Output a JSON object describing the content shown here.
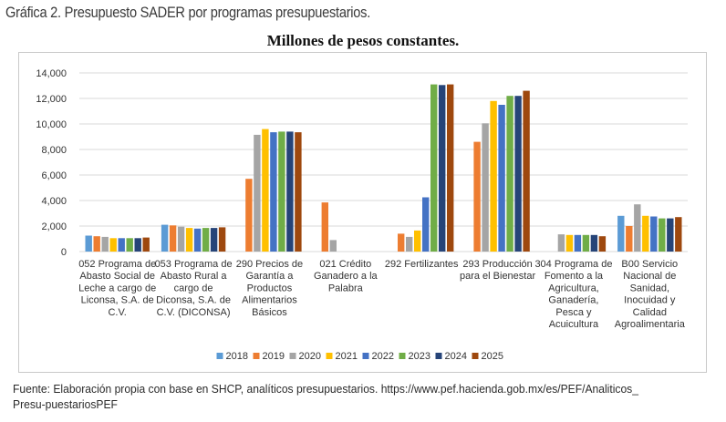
{
  "caption": "Gráfica 2. Presupuesto SADER por programas presupuestarios.",
  "source": "Fuente: Elaboración propia con base en SHCP, analíticos presupuestarios. https://www.pef.hacienda.gob.mx/es/PEF/Analiticos_ Presu-puestariosPEF",
  "chart_data": {
    "type": "bar",
    "title": "Millones de pesos constantes.",
    "xlabel": "",
    "ylabel": "",
    "ylim": [
      0,
      14000
    ],
    "yticks": [
      "0",
      "2,000",
      "4,000",
      "6,000",
      "8,000",
      "10,000",
      "12,000",
      "14,000"
    ],
    "grid": true,
    "legend_position": "bottom",
    "categories": [
      "052 Programa de Abasto Social de Leche a cargo de Liconsa, S.A. de C.V.",
      "053 Programa de Abasto Rural a cargo de Diconsa, S.A. de C.V. (DICONSA)",
      "290 Precios de Garantía a Productos Alimentarios Básicos",
      "021 Crédito Ganadero a la Palabra",
      "292 Fertilizantes",
      "293 Producción para el Bienestar",
      "304 Programa de Fomento a la Agricultura, Ganadería, Pesca y Acuicultura",
      "B00 Servicio Nacional de Sanidad, Inocuidad y Calidad Agroalimentaria"
    ],
    "category_lines": [
      [
        "052 Programa de",
        "Abasto Social de",
        "Leche a cargo de",
        "Liconsa, S.A. de",
        "C.V."
      ],
      [
        "053 Programa de",
        "Abasto Rural a",
        "cargo de",
        "Diconsa, S.A. de",
        "C.V. (DICONSA)"
      ],
      [
        "290 Precios de",
        "Garantía a",
        "Productos",
        "Alimentarios",
        "Básicos"
      ],
      [
        "021 Crédito",
        "Ganadero a la",
        "Palabra"
      ],
      [
        "292 Fertilizantes"
      ],
      [
        "293 Producción",
        "para el Bienestar"
      ],
      [
        "304 Programa de",
        "Fomento a la",
        "Agricultura,",
        "Ganadería,",
        "Pesca y",
        "Acuicultura"
      ],
      [
        "B00 Servicio",
        "Nacional de",
        "Sanidad,",
        "Inocuidad y",
        "Calidad",
        "Agroalimentaria"
      ]
    ],
    "series": [
      {
        "name": "2018",
        "color": "#5b9bd5",
        "values": [
          1250,
          2100,
          0,
          0,
          0,
          0,
          0,
          2800
        ]
      },
      {
        "name": "2019",
        "color": "#ed7d31",
        "values": [
          1200,
          2050,
          5700,
          3850,
          1400,
          8600,
          0,
          2000
        ]
      },
      {
        "name": "2020",
        "color": "#a5a5a5",
        "values": [
          1150,
          1950,
          9150,
          900,
          1150,
          10050,
          1350,
          3700
        ]
      },
      {
        "name": "2021",
        "color": "#ffc000",
        "values": [
          1050,
          1850,
          9600,
          0,
          1650,
          11800,
          1300,
          2800
        ]
      },
      {
        "name": "2022",
        "color": "#4472c4",
        "values": [
          1050,
          1800,
          9350,
          0,
          4250,
          11500,
          1300,
          2750
        ]
      },
      {
        "name": "2023",
        "color": "#70ad47",
        "values": [
          1050,
          1850,
          9400,
          0,
          13100,
          12200,
          1300,
          2600
        ]
      },
      {
        "name": "2024",
        "color": "#264478",
        "values": [
          1050,
          1850,
          9400,
          0,
          13050,
          12200,
          1300,
          2600
        ]
      },
      {
        "name": "2025",
        "color": "#9e480e",
        "values": [
          1100,
          1900,
          9350,
          0,
          13100,
          12600,
          1200,
          2700
        ]
      }
    ]
  }
}
